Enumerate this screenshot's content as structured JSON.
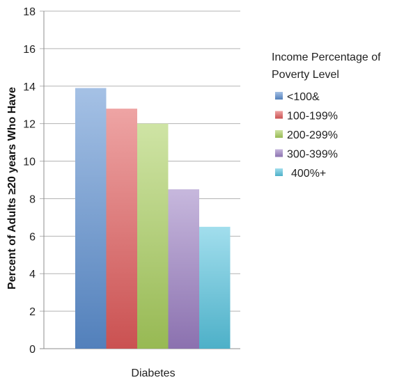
{
  "chart_data": {
    "type": "bar",
    "categories": [
      "Diabetes"
    ],
    "series": [
      {
        "name": "<100&",
        "values": [
          13.9
        ],
        "color": "#5b8ed0"
      },
      {
        "name": "100-199%",
        "values": [
          12.8
        ],
        "color": "#e05a5a"
      },
      {
        "name": "200-299%",
        "values": [
          12.0
        ],
        "color": "#a8cd5c"
      },
      {
        "name": "300-399%",
        "values": [
          8.5
        ],
        "color": "#9a7ec2"
      },
      {
        "name": "400%+",
        "values": [
          6.5
        ],
        "color": "#56c3de"
      }
    ],
    "ylabel": "Percent of Adults ≥20 years Who Have",
    "xlabel": "",
    "ylim": [
      0,
      18
    ],
    "yticks": [
      0,
      2,
      4,
      6,
      8,
      10,
      12,
      14,
      16,
      18
    ],
    "grid": true,
    "legend": {
      "title_line1": "Income Percentage of",
      "title_line2": "Poverty Level",
      "placement": "right"
    }
  }
}
